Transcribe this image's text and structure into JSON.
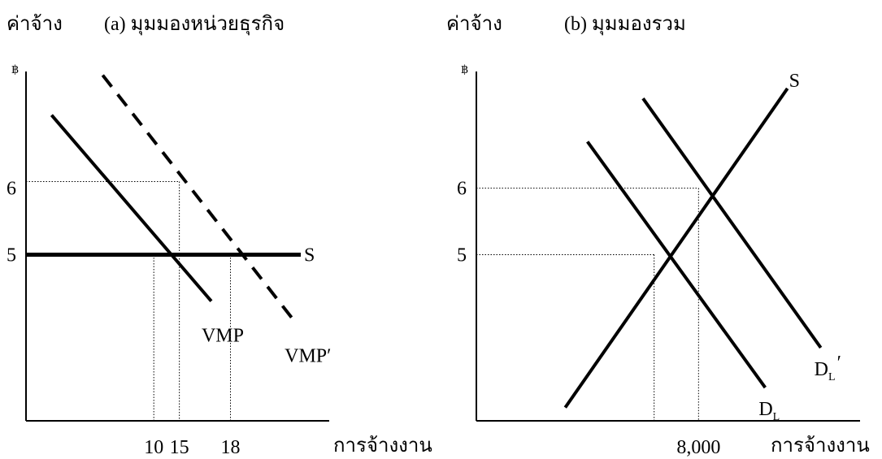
{
  "chart_data": [
    {
      "type": "line",
      "title": "(a) มุมมองหน่วยธุรกิจ",
      "ylabel": "ค่าจ้าง",
      "y_unit": "฿",
      "xlabel": "การจ้างงาน",
      "x_ticks": [
        "10",
        "15",
        "18"
      ],
      "y_ticks": [
        "5",
        "6"
      ],
      "series": [
        {
          "name": "S",
          "style": "solid-thick",
          "points": [
            [
              0,
              5
            ],
            [
              21.5,
              5
            ]
          ]
        },
        {
          "name": "VMP",
          "style": "solid",
          "points": [
            [
              2,
              7.1
            ],
            [
              14.5,
              4.3
            ]
          ]
        },
        {
          "name": "VMP′",
          "style": "dashed",
          "points": [
            [
              6,
              7.7
            ],
            [
              21,
              4.0
            ]
          ]
        }
      ],
      "guides": [
        {
          "x": 10,
          "y": 5
        },
        {
          "x": 12,
          "y": 6.1
        },
        {
          "x": 16,
          "y": 5
        }
      ],
      "xlim": [
        0,
        25
      ],
      "ylim": [
        2.5,
        8
      ]
    },
    {
      "type": "line",
      "title": "(b) มุมมองรวม",
      "ylabel": "ค่าจ้าง",
      "y_unit": "฿",
      "xlabel": "การจ้างงาน",
      "x_ticks": [
        "8,000"
      ],
      "y_ticks": [
        "5",
        "6"
      ],
      "series": [
        {
          "name": "S",
          "style": "solid",
          "points": [
            [
              4,
              2.7
            ],
            [
              14,
              7.5
            ]
          ]
        },
        {
          "name": "D_L",
          "main": "D",
          "sub": "L",
          "style": "solid",
          "points": [
            [
              5,
              6.7
            ],
            [
              13,
              3.0
            ]
          ]
        },
        {
          "name": "D_L′",
          "main": "D",
          "sub": "L",
          "prime": "′",
          "style": "solid",
          "points": [
            [
              7.5,
              7.35
            ],
            [
              15.5,
              3.6
            ]
          ]
        }
      ],
      "guides": [
        {
          "x": 10,
          "y": 6
        },
        {
          "x": 8,
          "y": 5
        }
      ],
      "xlim": [
        0,
        18
      ],
      "ylim": [
        2.5,
        8
      ]
    }
  ]
}
